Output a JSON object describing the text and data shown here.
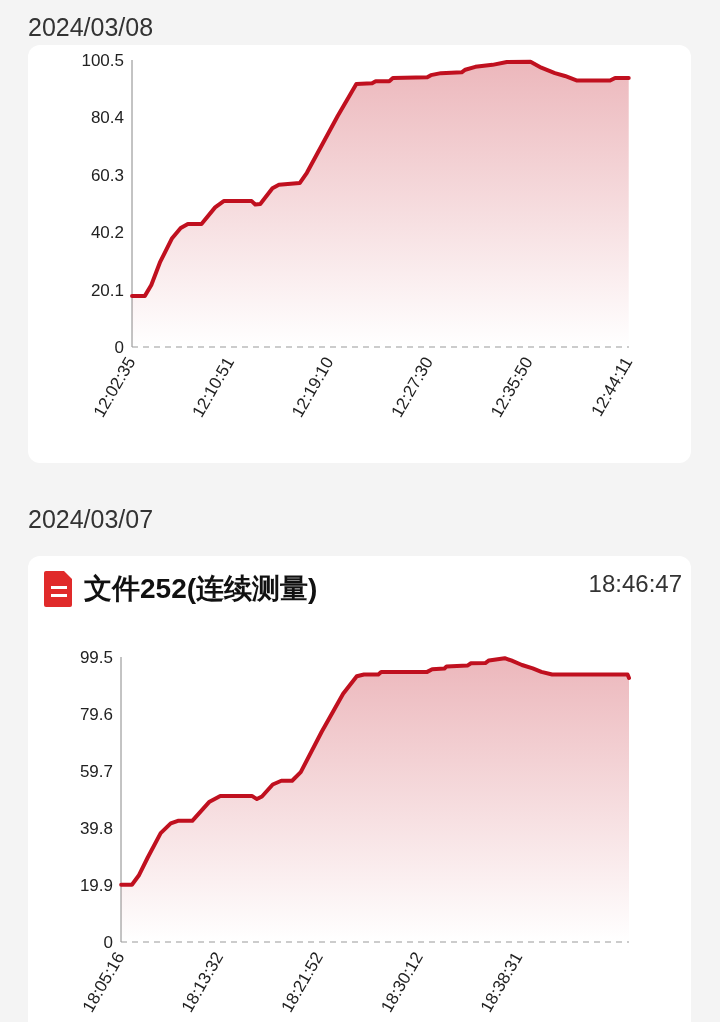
{
  "chart_data": [
    {
      "type": "area",
      "title": "2024/03/08",
      "x": [
        12.0431,
        12.061,
        12.07,
        12.082,
        12.099,
        12.111,
        12.121,
        12.14,
        12.159,
        12.171,
        12.21,
        12.215,
        12.222,
        12.239,
        12.248,
        12.277,
        12.287,
        12.33,
        12.356,
        12.378,
        12.383,
        12.402,
        12.407,
        12.455,
        12.46,
        12.474,
        12.503,
        12.508,
        12.522,
        12.546,
        12.566,
        12.599,
        12.614,
        12.633,
        12.647,
        12.664,
        12.71,
        12.717,
        12.736
      ],
      "series": [
        {
          "color": "#c0101f",
          "values": [
            17.9,
            17.9,
            21.7,
            29.6,
            38.1,
            41.7,
            43.1,
            43.1,
            48.9,
            51.1,
            51.1,
            49.9,
            50.1,
            55.6,
            56.8,
            57.4,
            61.0,
            80.9,
            92.1,
            92.4,
            93.1,
            93.1,
            94.2,
            94.5,
            95.2,
            95.9,
            96.2,
            97.1,
            98.1,
            98.8,
            99.8,
            99.9,
            97.8,
            95.9,
            94.9,
            93.3,
            93.3,
            94.2,
            94.2
          ]
        }
      ],
      "xlim": [
        12.043056,
        12.736389
      ],
      "xticks": [
        {
          "value": 12.043056,
          "label": "12:02:35"
        },
        {
          "value": 12.180833,
          "label": "12:10:51"
        },
        {
          "value": 12.319444,
          "label": "12:19:10"
        },
        {
          "value": 12.458333,
          "label": "12:27:30"
        },
        {
          "value": 12.597222,
          "label": "12:35:50"
        },
        {
          "value": 12.736389,
          "label": "12:44:11"
        }
      ],
      "ylim": [
        0,
        100.5
      ],
      "yticks": [
        0,
        20.1,
        40.2,
        60.3,
        80.4,
        100.5
      ]
    },
    {
      "type": "area",
      "title": "2024/03/07",
      "subtitle": "文件252(连续测量)",
      "annotations": [
        "18:46:47"
      ],
      "x": [
        18.088,
        18.103,
        18.113,
        18.125,
        18.143,
        18.157,
        18.167,
        18.187,
        18.211,
        18.226,
        18.27,
        18.277,
        18.284,
        18.299,
        18.311,
        18.326,
        18.338,
        18.367,
        18.397,
        18.416,
        18.426,
        18.446,
        18.45,
        18.514,
        18.521,
        18.538,
        18.541,
        18.57,
        18.575,
        18.595,
        18.6,
        18.622,
        18.631,
        18.646,
        18.661,
        18.673,
        18.688,
        18.793,
        18.795
      ],
      "series": [
        {
          "color": "#c0101f",
          "values": [
            20.0,
            20.0,
            23.4,
            29.5,
            38.0,
            41.4,
            42.3,
            42.3,
            49.0,
            51.0,
            51.0,
            49.9,
            50.8,
            55.0,
            56.3,
            56.3,
            59.3,
            73.3,
            86.7,
            92.8,
            93.4,
            93.4,
            94.3,
            94.3,
            95.2,
            95.5,
            96.2,
            96.5,
            97.3,
            97.4,
            98.3,
            99.1,
            98.3,
            96.7,
            95.5,
            94.3,
            93.4,
            93.4,
            92.2
          ]
        }
      ],
      "xlim": [
        18.087778,
        18.795
      ],
      "xticks": [
        {
          "value": 18.087778,
          "label": "18:05:16"
        },
        {
          "value": 18.225556,
          "label": "18:13:32"
        },
        {
          "value": 18.364444,
          "label": "18:21:52"
        },
        {
          "value": 18.503333,
          "label": "18:30:12"
        },
        {
          "value": 18.641944,
          "label": "18:38:31"
        }
      ],
      "ylim": [
        0,
        99.5
      ],
      "yticks": [
        0,
        19.9,
        39.8,
        59.7,
        79.6,
        99.5
      ]
    }
  ]
}
